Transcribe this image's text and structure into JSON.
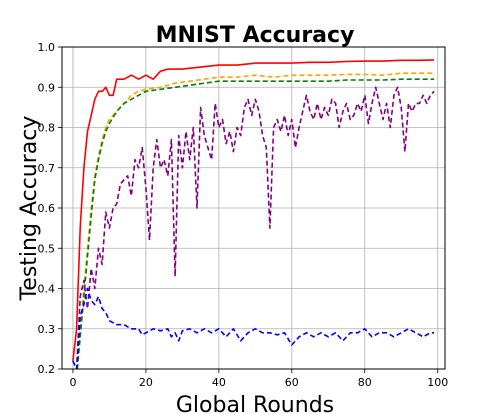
{
  "chart_data": {
    "type": "line",
    "title": "MNIST Accuracy",
    "xlabel": "Global Rounds",
    "ylabel": "Testing Accuracy",
    "xlim": [
      -3,
      102
    ],
    "ylim": [
      0.2,
      1.0
    ],
    "x_ticks": [
      0,
      20,
      40,
      60,
      80,
      100
    ],
    "y_ticks": [
      0.2,
      0.3,
      0.4,
      0.5,
      0.6,
      0.7,
      0.8,
      0.9,
      1.0
    ],
    "grid": true,
    "series": [
      {
        "color": "#ff0000",
        "style": "solid",
        "points": [
          [
            0,
            0.22
          ],
          [
            1,
            0.3
          ],
          [
            2,
            0.55
          ],
          [
            3,
            0.7
          ],
          [
            4,
            0.79
          ],
          [
            5,
            0.83
          ],
          [
            6,
            0.87
          ],
          [
            7,
            0.89
          ],
          [
            8,
            0.89
          ],
          [
            9,
            0.9
          ],
          [
            10,
            0.88
          ],
          [
            11,
            0.88
          ],
          [
            12,
            0.92
          ],
          [
            14,
            0.92
          ],
          [
            16,
            0.93
          ],
          [
            18,
            0.92
          ],
          [
            20,
            0.93
          ],
          [
            22,
            0.92
          ],
          [
            24,
            0.94
          ],
          [
            26,
            0.945
          ],
          [
            30,
            0.945
          ],
          [
            35,
            0.95
          ],
          [
            40,
            0.955
          ],
          [
            45,
            0.955
          ],
          [
            50,
            0.96
          ],
          [
            55,
            0.96
          ],
          [
            60,
            0.96
          ],
          [
            65,
            0.962
          ],
          [
            70,
            0.962
          ],
          [
            75,
            0.964
          ],
          [
            80,
            0.965
          ],
          [
            85,
            0.965
          ],
          [
            90,
            0.967
          ],
          [
            95,
            0.967
          ],
          [
            99,
            0.968
          ]
        ]
      },
      {
        "color": "#ffa500",
        "style": "dashed",
        "points": [
          [
            1,
            0.18
          ],
          [
            2,
            0.3
          ],
          [
            3,
            0.4
          ],
          [
            4,
            0.5
          ],
          [
            5,
            0.6
          ],
          [
            6,
            0.68
          ],
          [
            7,
            0.73
          ],
          [
            8,
            0.77
          ],
          [
            9,
            0.8
          ],
          [
            10,
            0.82
          ],
          [
            12,
            0.84
          ],
          [
            14,
            0.86
          ],
          [
            16,
            0.88
          ],
          [
            18,
            0.89
          ],
          [
            20,
            0.895
          ],
          [
            24,
            0.9
          ],
          [
            28,
            0.91
          ],
          [
            32,
            0.915
          ],
          [
            36,
            0.92
          ],
          [
            40,
            0.925
          ],
          [
            45,
            0.925
          ],
          [
            50,
            0.93
          ],
          [
            55,
            0.925
          ],
          [
            60,
            0.93
          ],
          [
            65,
            0.93
          ],
          [
            70,
            0.93
          ],
          [
            75,
            0.932
          ],
          [
            80,
            0.932
          ],
          [
            85,
            0.93
          ],
          [
            90,
            0.935
          ],
          [
            95,
            0.935
          ],
          [
            99,
            0.935
          ]
        ]
      },
      {
        "color": "#008000",
        "style": "dashed",
        "points": [
          [
            1,
            0.18
          ],
          [
            2,
            0.28
          ],
          [
            3,
            0.38
          ],
          [
            4,
            0.48
          ],
          [
            5,
            0.58
          ],
          [
            6,
            0.67
          ],
          [
            7,
            0.72
          ],
          [
            8,
            0.76
          ],
          [
            9,
            0.79
          ],
          [
            10,
            0.81
          ],
          [
            12,
            0.84
          ],
          [
            14,
            0.86
          ],
          [
            16,
            0.87
          ],
          [
            18,
            0.88
          ],
          [
            20,
            0.89
          ],
          [
            24,
            0.895
          ],
          [
            28,
            0.9
          ],
          [
            32,
            0.905
          ],
          [
            36,
            0.91
          ],
          [
            40,
            0.915
          ],
          [
            45,
            0.915
          ],
          [
            50,
            0.915
          ],
          [
            55,
            0.915
          ],
          [
            60,
            0.915
          ],
          [
            65,
            0.915
          ],
          [
            70,
            0.915
          ],
          [
            75,
            0.918
          ],
          [
            80,
            0.918
          ],
          [
            85,
            0.918
          ],
          [
            90,
            0.92
          ],
          [
            95,
            0.92
          ],
          [
            99,
            0.92
          ]
        ]
      },
      {
        "color": "#800080",
        "style": "dashed",
        "points": [
          [
            0,
            0.22
          ],
          [
            1,
            0.2
          ],
          [
            2,
            0.38
          ],
          [
            3,
            0.42
          ],
          [
            4,
            0.35
          ],
          [
            5,
            0.45
          ],
          [
            6,
            0.4
          ],
          [
            7,
            0.5
          ],
          [
            8,
            0.46
          ],
          [
            9,
            0.59
          ],
          [
            10,
            0.55
          ],
          [
            11,
            0.6
          ],
          [
            12,
            0.61
          ],
          [
            13,
            0.66
          ],
          [
            14,
            0.67
          ],
          [
            15,
            0.68
          ],
          [
            16,
            0.63
          ],
          [
            17,
            0.72
          ],
          [
            18,
            0.7
          ],
          [
            19,
            0.75
          ],
          [
            20,
            0.65
          ],
          [
            21,
            0.52
          ],
          [
            22,
            0.7
          ],
          [
            23,
            0.77
          ],
          [
            24,
            0.7
          ],
          [
            25,
            0.72
          ],
          [
            26,
            0.68
          ],
          [
            27,
            0.77
          ],
          [
            28,
            0.43
          ],
          [
            29,
            0.78
          ],
          [
            30,
            0.7
          ],
          [
            31,
            0.79
          ],
          [
            32,
            0.72
          ],
          [
            33,
            0.8
          ],
          [
            34,
            0.6
          ],
          [
            35,
            0.85
          ],
          [
            36,
            0.78
          ],
          [
            37,
            0.75
          ],
          [
            38,
            0.72
          ],
          [
            39,
            0.86
          ],
          [
            40,
            0.8
          ],
          [
            41,
            0.82
          ],
          [
            42,
            0.76
          ],
          [
            43,
            0.79
          ],
          [
            44,
            0.74
          ],
          [
            45,
            0.8
          ],
          [
            46,
            0.78
          ],
          [
            47,
            0.85
          ],
          [
            48,
            0.87
          ],
          [
            49,
            0.83
          ],
          [
            50,
            0.87
          ],
          [
            51,
            0.84
          ],
          [
            52,
            0.78
          ],
          [
            53,
            0.75
          ],
          [
            54,
            0.55
          ],
          [
            55,
            0.8
          ],
          [
            56,
            0.82
          ],
          [
            57,
            0.79
          ],
          [
            58,
            0.83
          ],
          [
            59,
            0.78
          ],
          [
            60,
            0.82
          ],
          [
            61,
            0.75
          ],
          [
            62,
            0.8
          ],
          [
            63,
            0.84
          ],
          [
            64,
            0.88
          ],
          [
            65,
            0.84
          ],
          [
            66,
            0.82
          ],
          [
            67,
            0.86
          ],
          [
            68,
            0.82
          ],
          [
            69,
            0.85
          ],
          [
            70,
            0.83
          ],
          [
            71,
            0.87
          ],
          [
            72,
            0.86
          ],
          [
            73,
            0.8
          ],
          [
            74,
            0.84
          ],
          [
            75,
            0.86
          ],
          [
            76,
            0.82
          ],
          [
            77,
            0.83
          ],
          [
            78,
            0.86
          ],
          [
            79,
            0.84
          ],
          [
            80,
            0.88
          ],
          [
            81,
            0.81
          ],
          [
            82,
            0.86
          ],
          [
            83,
            0.9
          ],
          [
            84,
            0.86
          ],
          [
            85,
            0.82
          ],
          [
            86,
            0.86
          ],
          [
            87,
            0.8
          ],
          [
            88,
            0.88
          ],
          [
            89,
            0.9
          ],
          [
            90,
            0.85
          ],
          [
            91,
            0.74
          ],
          [
            92,
            0.86
          ],
          [
            93,
            0.84
          ],
          [
            94,
            0.86
          ],
          [
            95,
            0.86
          ],
          [
            96,
            0.88
          ],
          [
            97,
            0.86
          ],
          [
            98,
            0.88
          ],
          [
            99,
            0.89
          ]
        ]
      },
      {
        "color": "#0000ff",
        "style": "dashed",
        "points": [
          [
            0,
            0.22
          ],
          [
            1,
            0.2
          ],
          [
            2,
            0.33
          ],
          [
            3,
            0.36
          ],
          [
            4,
            0.4
          ],
          [
            5,
            0.37
          ],
          [
            6,
            0.36
          ],
          [
            7,
            0.38
          ],
          [
            8,
            0.35
          ],
          [
            9,
            0.34
          ],
          [
            10,
            0.32
          ],
          [
            12,
            0.31
          ],
          [
            14,
            0.31
          ],
          [
            16,
            0.3
          ],
          [
            18,
            0.3
          ],
          [
            19,
            0.285
          ],
          [
            20,
            0.29
          ],
          [
            22,
            0.3
          ],
          [
            24,
            0.295
          ],
          [
            26,
            0.3
          ],
          [
            27,
            0.28
          ],
          [
            28,
            0.29
          ],
          [
            29,
            0.27
          ],
          [
            30,
            0.295
          ],
          [
            32,
            0.3
          ],
          [
            34,
            0.29
          ],
          [
            36,
            0.3
          ],
          [
            38,
            0.29
          ],
          [
            40,
            0.3
          ],
          [
            42,
            0.28
          ],
          [
            44,
            0.3
          ],
          [
            46,
            0.27
          ],
          [
            48,
            0.29
          ],
          [
            50,
            0.3
          ],
          [
            52,
            0.29
          ],
          [
            54,
            0.29
          ],
          [
            56,
            0.285
          ],
          [
            58,
            0.29
          ],
          [
            60,
            0.26
          ],
          [
            62,
            0.28
          ],
          [
            64,
            0.29
          ],
          [
            66,
            0.28
          ],
          [
            68,
            0.29
          ],
          [
            70,
            0.28
          ],
          [
            72,
            0.29
          ],
          [
            74,
            0.27
          ],
          [
            76,
            0.29
          ],
          [
            78,
            0.29
          ],
          [
            80,
            0.3
          ],
          [
            82,
            0.28
          ],
          [
            84,
            0.29
          ],
          [
            86,
            0.29
          ],
          [
            88,
            0.28
          ],
          [
            90,
            0.29
          ],
          [
            92,
            0.3
          ],
          [
            94,
            0.29
          ],
          [
            96,
            0.28
          ],
          [
            98,
            0.29
          ],
          [
            99,
            0.29
          ]
        ]
      }
    ]
  }
}
